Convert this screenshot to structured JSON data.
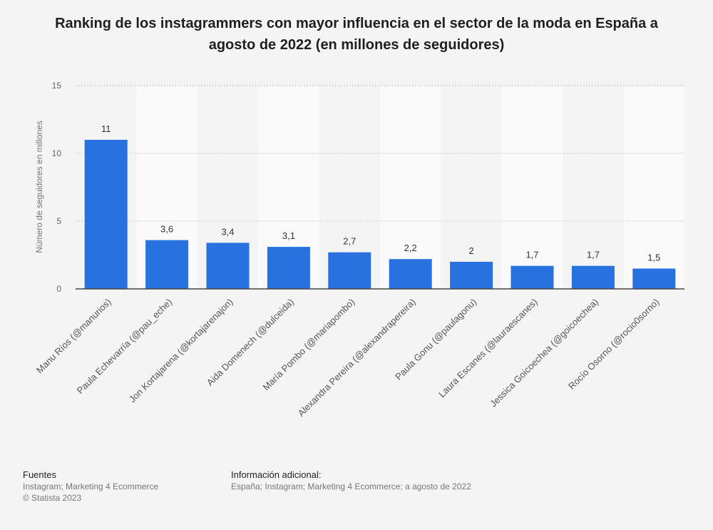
{
  "title": "Ranking de los instagrammers con mayor influencia en el sector de la moda en España a agosto de 2022 (en millones de seguidores)",
  "footer": {
    "sources_heading": "Fuentes",
    "sources_text": "Instagram; Marketing 4 Ecommerce",
    "copyright": "© Statista 2023",
    "info_heading": "Información adicional:",
    "info_text": "España; Instagram; Marketing 4 Ecommerce; a agosto de 2022"
  },
  "colors": {
    "bar": "#2872e0",
    "stripe": "#fafafa",
    "background": "#f4f4f4"
  },
  "chart_data": {
    "type": "bar",
    "title": "Ranking de los instagrammers con mayor influencia en el sector de la moda en España a agosto de 2022 (en millones de seguidores)",
    "xlabel": "",
    "ylabel": "Número de seguidores en millones",
    "ylim": [
      0,
      15
    ],
    "yticks": [
      0,
      5,
      10,
      15
    ],
    "grid": true,
    "categories": [
      "Manu Ríos (@manurios)",
      "Paula Echevarría (@pau_eche)",
      "Jon Kortajarena (@kortajarenajon)",
      "Aida Domenech (@dulceida)",
      "María Pombo (@mariapombo)",
      "Alexandra Pereira (@alexandrapereira)",
      "Paula Gonu (@paulagonu)",
      "Laura Escanes (@lauraescanes)",
      "Jessica Goicoechea (@goicoechea)",
      "Rocío Osorno (@rocio0sorno)"
    ],
    "values": [
      11,
      3.6,
      3.4,
      3.1,
      2.7,
      2.2,
      2,
      1.7,
      1.7,
      1.5
    ],
    "value_labels": [
      "11",
      "3,6",
      "3,4",
      "3,1",
      "2,7",
      "2,2",
      "2",
      "1,7",
      "1,7",
      "1,5"
    ]
  }
}
